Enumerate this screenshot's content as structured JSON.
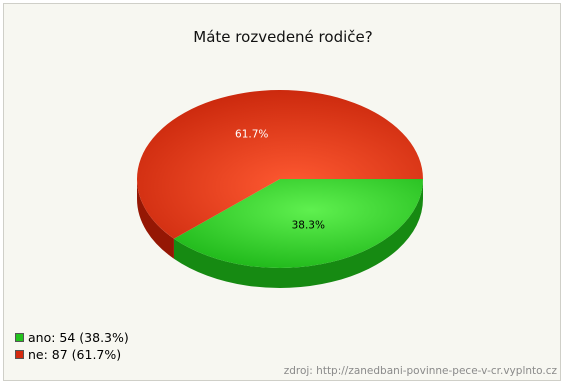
{
  "chart_data": {
    "type": "pie",
    "title": "Máte rozvedené rodiče?",
    "slices": [
      {
        "label": "ano",
        "value": 54,
        "percent": 38.3,
        "percent_label": "38.3%",
        "color": "#22c31d",
        "legend_text": "ano: 54 (38.3%)"
      },
      {
        "label": "ne",
        "value": 87,
        "percent": 61.7,
        "percent_label": "61.7%",
        "color": "#d42a0f",
        "legend_text": "ne: 87 (61.7%)"
      }
    ],
    "legend_position": "bottom-left",
    "style": "3d"
  },
  "source": "zdroj: http://zanedbani-povinne-pece-v-cr.vyplnto.cz"
}
